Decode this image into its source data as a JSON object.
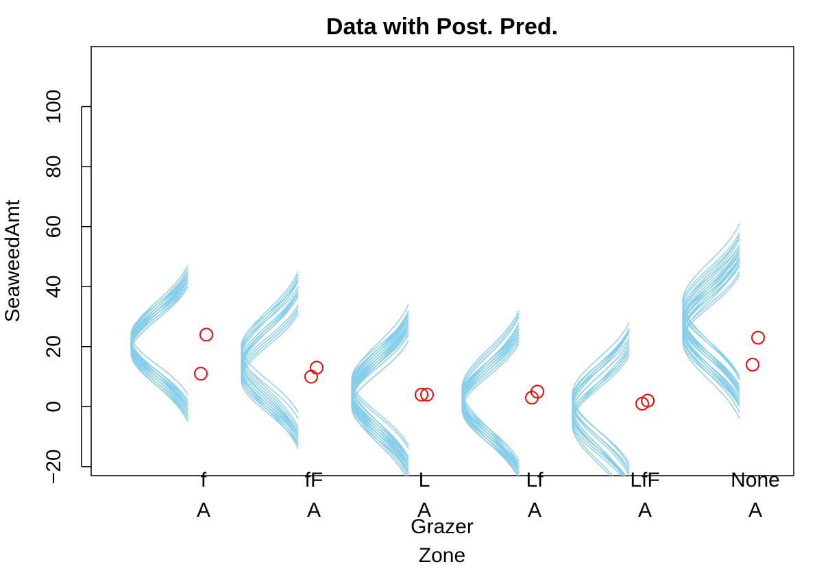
{
  "chart_data": {
    "type": "scatter",
    "title": "Data with Post. Pred.",
    "ylabel": "SeaweedAmt",
    "xlabel_lines": [
      "Grazer",
      "Zone"
    ],
    "ylim": [
      -23,
      120
    ],
    "yticks": [
      -20,
      0,
      20,
      40,
      60,
      80,
      100
    ],
    "categories": [
      {
        "grazer": "f",
        "zone": "A"
      },
      {
        "grazer": "fF",
        "zone": "A"
      },
      {
        "grazer": "L",
        "zone": "A"
      },
      {
        "grazer": "Lf",
        "zone": "A"
      },
      {
        "grazer": "LfF",
        "zone": "A"
      },
      {
        "grazer": "None",
        "zone": "A"
      }
    ],
    "points": [
      [
        11,
        24
      ],
      [
        10,
        13
      ],
      [
        4,
        4
      ],
      [
        3,
        5
      ],
      [
        1,
        2
      ],
      [
        14,
        23
      ]
    ],
    "posterior_predictive": {
      "draws_per_group": 24,
      "means": [
        [
          21,
          20,
          22,
          23,
          19,
          21,
          22,
          20,
          24,
          18,
          21,
          22,
          20,
          23,
          21,
          19,
          22,
          20,
          21,
          23,
          22,
          18,
          20,
          21
        ],
        [
          14,
          16,
          12,
          15,
          19,
          10,
          13,
          17,
          11,
          14,
          18,
          9,
          15,
          12,
          20,
          13,
          16,
          11,
          14,
          17,
          10,
          15,
          13,
          18
        ],
        [
          4,
          6,
          2,
          7,
          1,
          5,
          3,
          8,
          0,
          6,
          4,
          9,
          2,
          5,
          3,
          7,
          1,
          4,
          6,
          2,
          8,
          5,
          3,
          0
        ],
        [
          2,
          4,
          0,
          3,
          5,
          1,
          2,
          6,
          -1,
          3,
          4,
          0,
          2,
          5,
          1,
          3,
          4,
          2,
          0,
          6,
          3,
          1,
          2,
          4
        ],
        [
          -2,
          0,
          -4,
          2,
          -1,
          -3,
          1,
          -5,
          3,
          -2,
          0,
          -4,
          2,
          -1,
          -3,
          4,
          -6,
          1,
          -2,
          0,
          -3,
          2,
          -1,
          -5
        ],
        [
          28,
          24,
          32,
          26,
          30,
          22,
          34,
          27,
          25,
          29,
          31,
          23,
          33,
          26,
          28,
          24,
          35,
          27,
          30,
          22,
          29,
          25,
          31,
          27
        ]
      ],
      "sigmas": [
        [
          11,
          12,
          10,
          11,
          12,
          10,
          11,
          12,
          10,
          11,
          12,
          10,
          11,
          12,
          10,
          11,
          12,
          10,
          11,
          12,
          10,
          11,
          12,
          10
        ],
        [
          12,
          13,
          11,
          12,
          13,
          11,
          12,
          13,
          11,
          12,
          13,
          11,
          12,
          13,
          11,
          12,
          13,
          11,
          12,
          13,
          11,
          12,
          13,
          11
        ],
        [
          12,
          13,
          11,
          12,
          13,
          11,
          12,
          13,
          11,
          12,
          13,
          11,
          12,
          13,
          11,
          12,
          13,
          11,
          12,
          13,
          11,
          12,
          13,
          11
        ],
        [
          12,
          13,
          11,
          12,
          13,
          11,
          12,
          13,
          11,
          12,
          13,
          11,
          12,
          13,
          11,
          12,
          13,
          11,
          12,
          13,
          11,
          12,
          13,
          11
        ],
        [
          12,
          13,
          11,
          12,
          13,
          11,
          12,
          13,
          11,
          12,
          13,
          11,
          12,
          13,
          11,
          12,
          13,
          11,
          12,
          13,
          11,
          12,
          13,
          11
        ],
        [
          12,
          13,
          11,
          12,
          13,
          11,
          12,
          13,
          11,
          12,
          13,
          11,
          12,
          13,
          11,
          12,
          13,
          11,
          12,
          13,
          11,
          12,
          13,
          11
        ]
      ],
      "band_sigmas": 2
    },
    "colors": {
      "pred_line": "#87ceeb",
      "points": "#ff0000",
      "axis": "#000000"
    }
  }
}
